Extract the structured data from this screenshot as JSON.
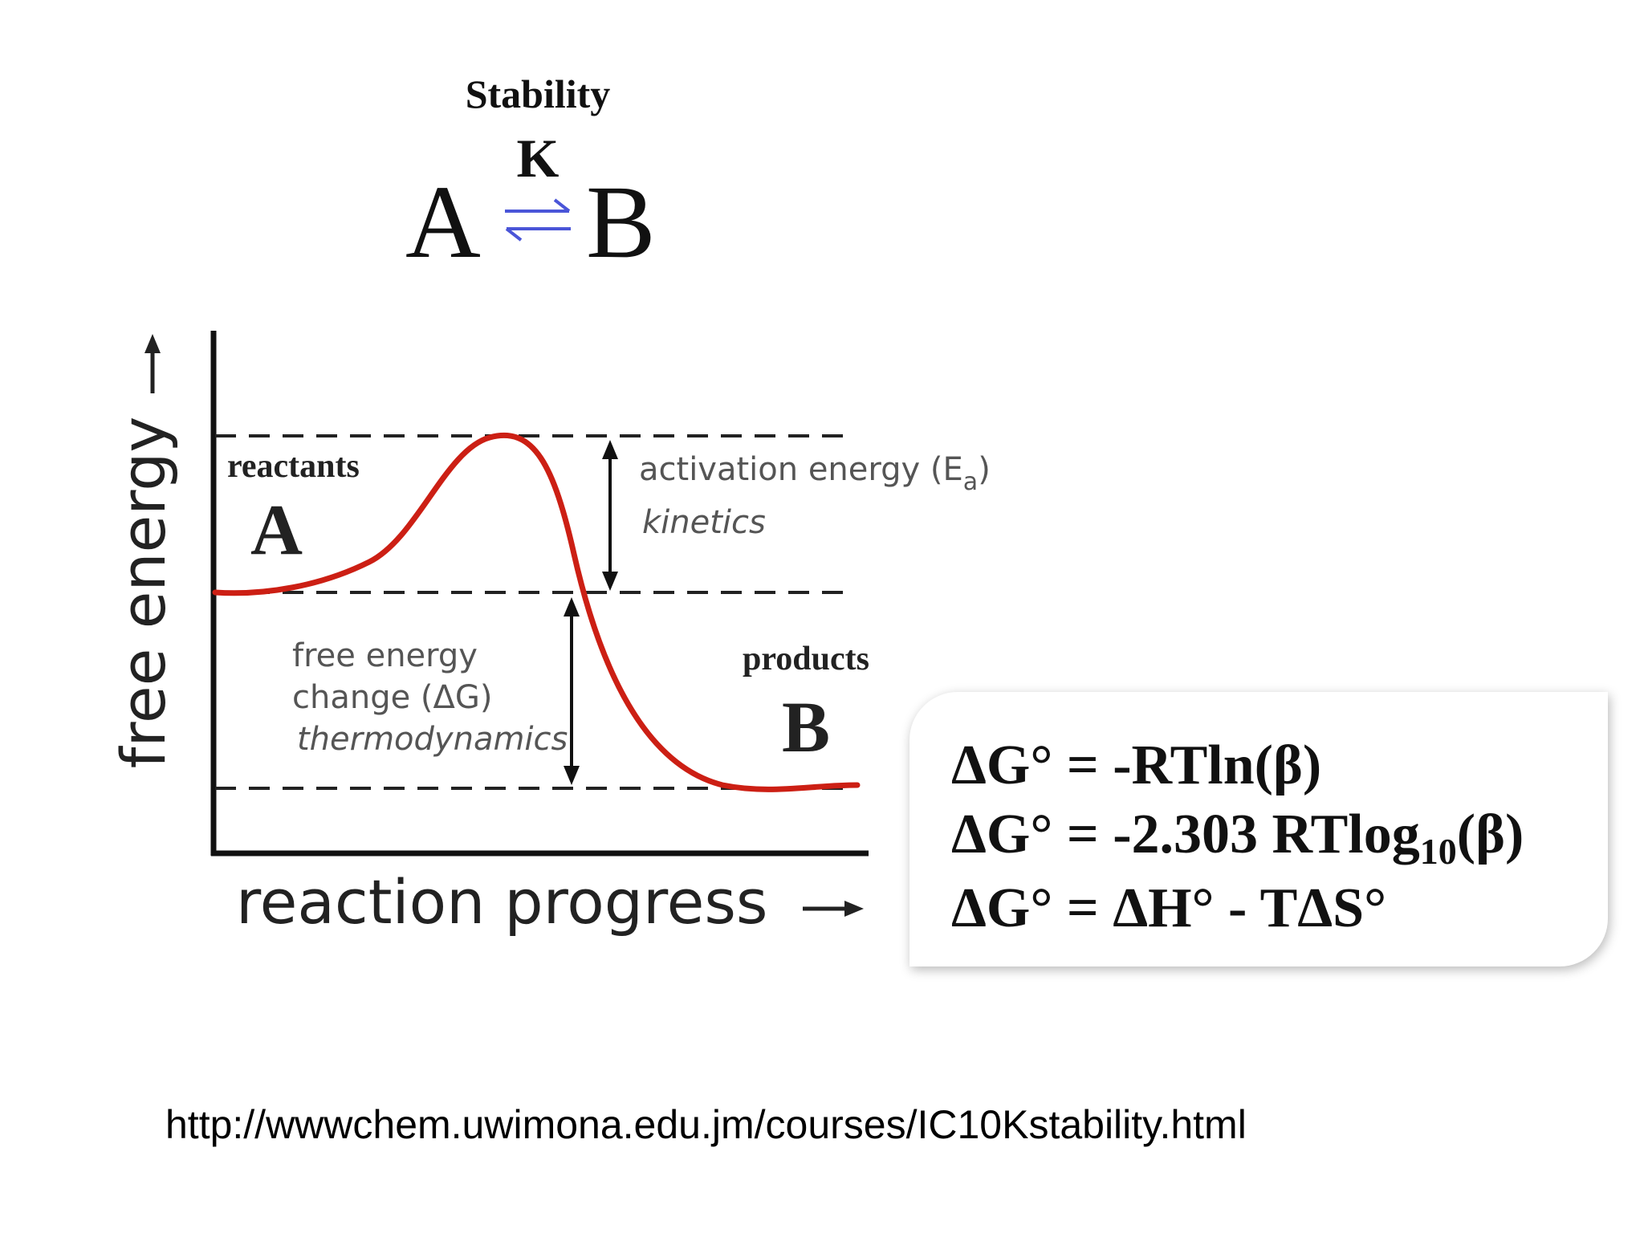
{
  "header": {
    "title": "Stability",
    "constant": "K",
    "reactant": "A",
    "product": "B"
  },
  "diagram": {
    "y_axis_label": "free energy",
    "x_axis_label": "reaction progress",
    "reactants_label": "reactants",
    "reactants_symbol": "A",
    "products_label": "products",
    "products_symbol": "B",
    "activation_energy_label": "activation energy (E",
    "activation_energy_subscript": "a",
    "activation_energy_close": ")",
    "kinetics_label": "kinetics",
    "free_energy_label_line1": "free energy",
    "free_energy_label_line2": "change (ΔG)",
    "thermodynamics_label": "thermodynamics"
  },
  "equations": {
    "line1": "ΔG° = -RTln(β)",
    "line2_main": "ΔG° = -2.303 RTlog",
    "line2_sub": "10",
    "line2_end": "(β)",
    "line3": "ΔG° = ΔH° - TΔS°"
  },
  "source": {
    "url": "http://wwwchem.uwimona.edu.jm/courses/IC10Kstability.html"
  },
  "colors": {
    "curve": "#cc1f14",
    "equilibrium_arrows": "#4a55d8"
  }
}
